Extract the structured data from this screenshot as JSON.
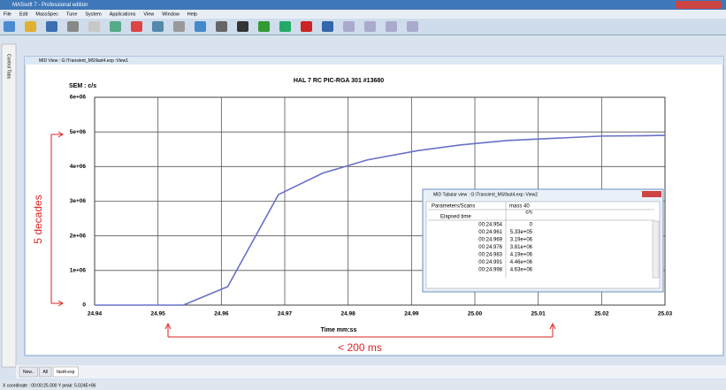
{
  "app": {
    "title": "MASsoft 7 - Professional edition",
    "menu": [
      "File",
      "Edit",
      "MassSpec",
      "Tune",
      "System",
      "Applications",
      "View",
      "Window",
      "Help"
    ],
    "side_tab": "Control Tabs",
    "view_title": "MID View : G:\\Transient_MS\\fast4.exp :View1",
    "tabs": [
      "New..",
      "All",
      "fast4.exp"
    ],
    "status": "X coordinate : 00:00:25.000 Y peak: 5.024E+06"
  },
  "table": {
    "title": "MID Tabular view : G:\\Transient_MS\\fast4.exp :View2",
    "header": [
      "Parameters/Scans",
      "mass 40"
    ],
    "unit": "c/s",
    "time_label": "Elapsed time",
    "rows": [
      [
        "00:24.954",
        "0"
      ],
      [
        "00:24.961",
        "5.33e+05"
      ],
      [
        "00:24.969",
        "3.19e+06"
      ],
      [
        "00:24.976",
        "3.81e+06"
      ],
      [
        "00:24.983",
        "4.19e+06"
      ],
      [
        "00:24.991",
        "4.46e+06"
      ],
      [
        "00:24.998",
        "4.63e+06"
      ]
    ]
  },
  "chart_data": {
    "type": "line",
    "title": "HAL 7 RC PIC-RGA 301 #13680",
    "y_label": "SEM : c/s",
    "x_label": "Time mm:ss",
    "annotations": [
      "5 decades",
      "< 200 ms"
    ],
    "x": [
      24.94,
      24.947,
      24.954,
      24.961,
      24.969,
      24.976,
      24.983,
      24.991,
      24.998,
      25.005,
      25.013,
      25.02,
      25.027,
      25.03
    ],
    "series": [
      {
        "name": "mass 40",
        "color": "#6870c8",
        "values": [
          0,
          0,
          0,
          533000,
          3190000,
          3810000,
          4190000,
          4460000,
          4630000,
          4750000,
          4820000,
          4880000,
          4890000,
          4900000
        ]
      }
    ],
    "xlim": [
      24.94,
      25.03
    ],
    "xticks": [
      24.94,
      24.95,
      24.96,
      24.97,
      24.98,
      24.99,
      {
        "value": 25,
        "label": "25.00"
      },
      25.01,
      25.02,
      25.03
    ],
    "ylim": [
      0,
      6000000
    ],
    "yticks": [
      0,
      {
        "value": 1000000,
        "label": "1e+06"
      },
      {
        "value": 2000000,
        "label": "2e+06"
      },
      {
        "value": 3000000,
        "label": "3e+06"
      },
      {
        "value": 4000000,
        "label": "4e+06"
      },
      {
        "value": 5000000,
        "label": "5e+06"
      },
      {
        "value": 6000000,
        "label": "6e+06"
      }
    ],
    "grid": true
  }
}
